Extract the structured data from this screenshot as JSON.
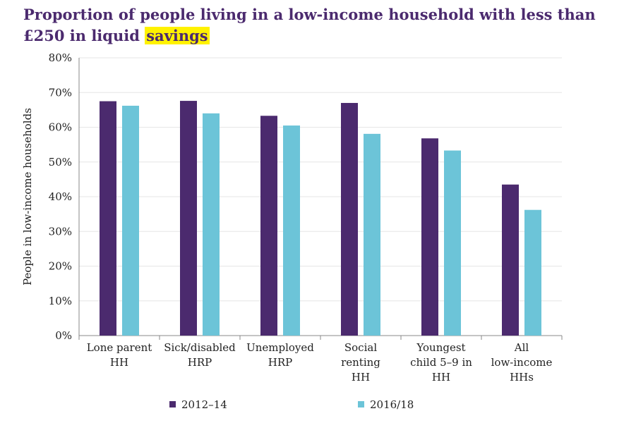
{
  "title": {
    "part1": "Proportion of people living in a low-income household with less than £250 in liquid",
    "highlight": "savings"
  },
  "chart_data": {
    "type": "bar",
    "title": "Proportion of people living in a low-income household with less than £250 in liquid savings",
    "ylabel": "People in low-income households",
    "ylim": [
      0,
      80
    ],
    "y_ticks": [
      "0%",
      "10%",
      "20%",
      "30%",
      "40%",
      "50%",
      "60%",
      "70%",
      "80%"
    ],
    "categories": [
      [
        "Lone parent",
        "HH"
      ],
      [
        "Sick/disabled",
        "HRP"
      ],
      [
        "Unemployed",
        "HRP"
      ],
      [
        "Social",
        "renting",
        "HH"
      ],
      [
        "Youngest",
        "child 5–9 in",
        "HH"
      ],
      [
        "All",
        "low-income",
        "HHs"
      ]
    ],
    "series": [
      {
        "name": "2012–14",
        "color": "#4b2a6e",
        "values": [
          67.5,
          67.6,
          63.3,
          67.0,
          56.8,
          43.5
        ]
      },
      {
        "name": "2016/18",
        "color": "#6cc4d8",
        "values": [
          66.2,
          64.0,
          60.5,
          58.1,
          53.3,
          36.2
        ]
      }
    ],
    "grid": true,
    "legend": "bottom"
  }
}
